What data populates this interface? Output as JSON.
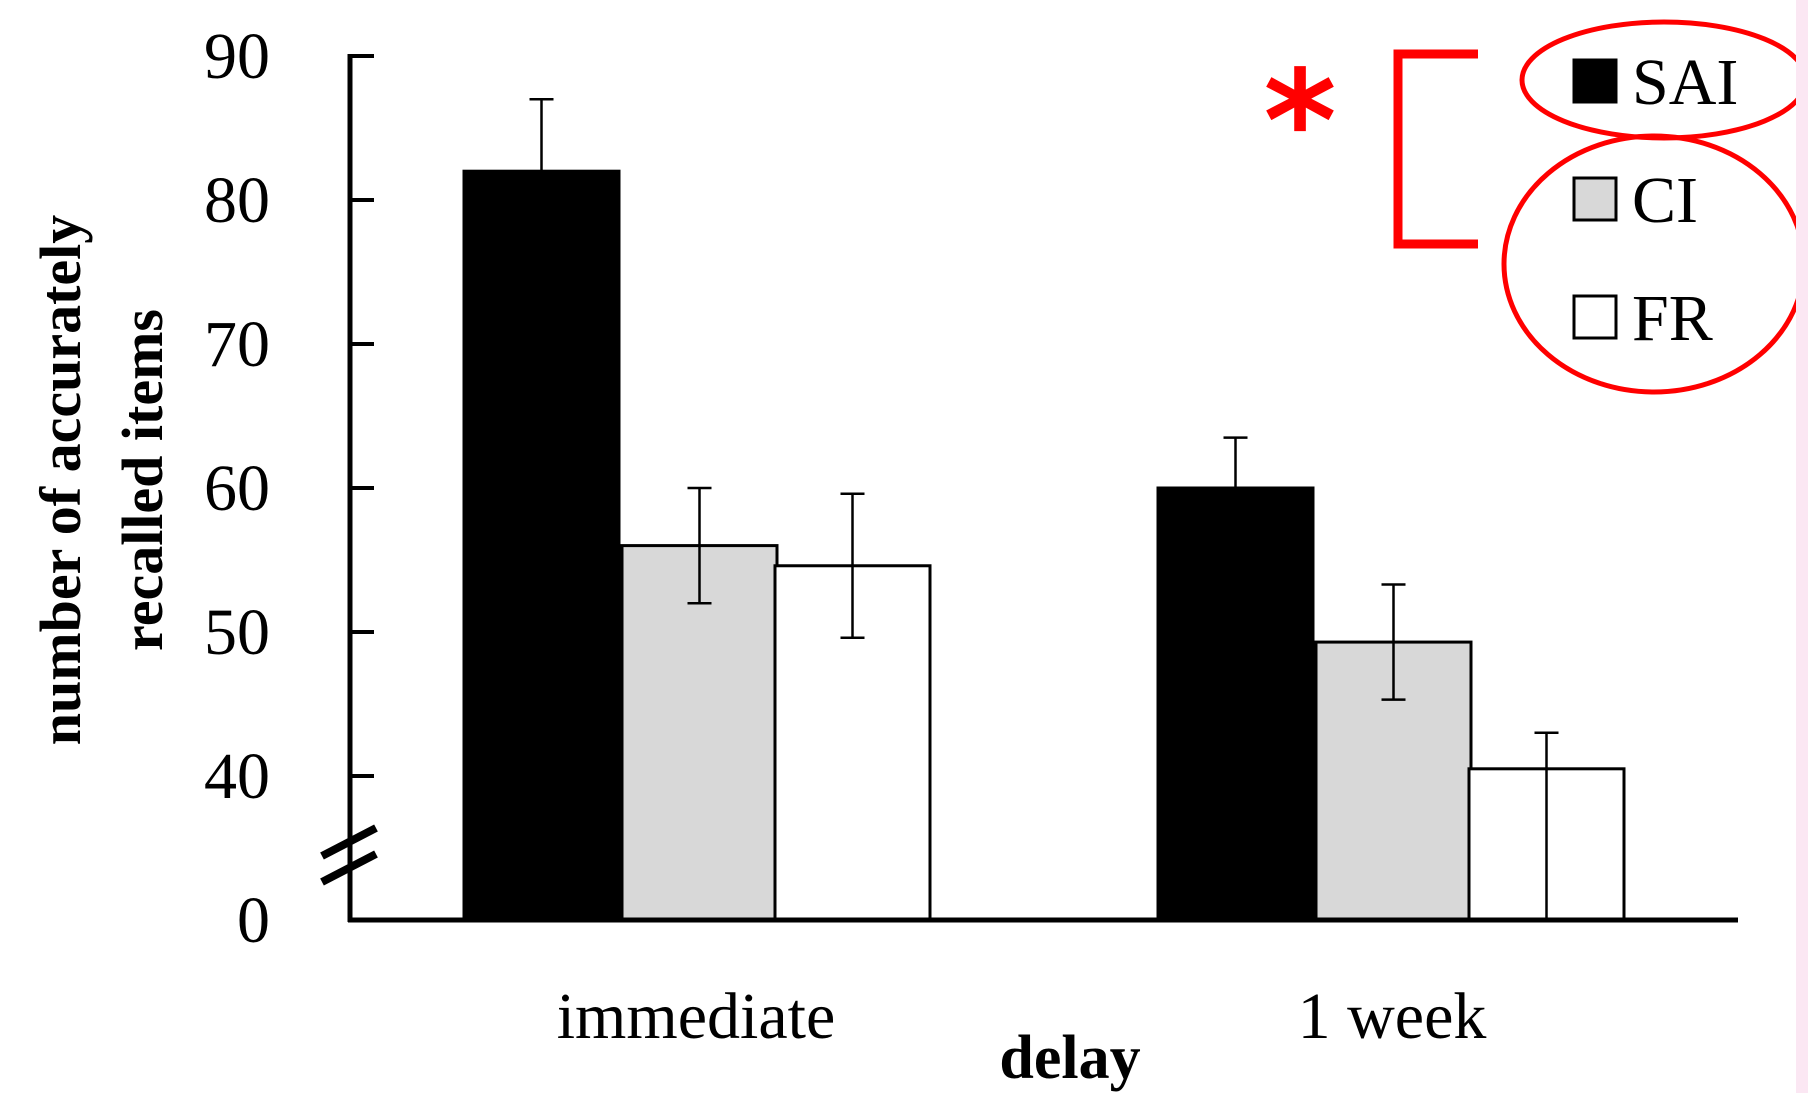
{
  "chart_data": {
    "type": "bar",
    "categories": [
      "immediate",
      "1 week"
    ],
    "series": [
      {
        "name": "SAI",
        "color": "#000000",
        "values": [
          82,
          60
        ],
        "errors": [
          5,
          3.5
        ]
      },
      {
        "name": "CI",
        "color": "#d8d8d8",
        "values": [
          56,
          49.3
        ],
        "errors": [
          4,
          4
        ]
      },
      {
        "name": "FR",
        "color": "#ffffff",
        "values": [
          54.6,
          40.5
        ],
        "errors": [
          5,
          2.5
        ]
      }
    ],
    "ylabel_lines": [
      "number of accurately",
      "recalled items"
    ],
    "xlabel": "delay",
    "yticks": [
      0,
      40,
      50,
      60,
      70,
      80,
      90
    ],
    "ylim": [
      30,
      90
    ],
    "y_axis_break": true,
    "legend_position": "top-right",
    "significance": {
      "marker": "*",
      "between": [
        "SAI",
        "CI",
        "FR"
      ],
      "color": "#ff0000"
    },
    "grid": false
  }
}
